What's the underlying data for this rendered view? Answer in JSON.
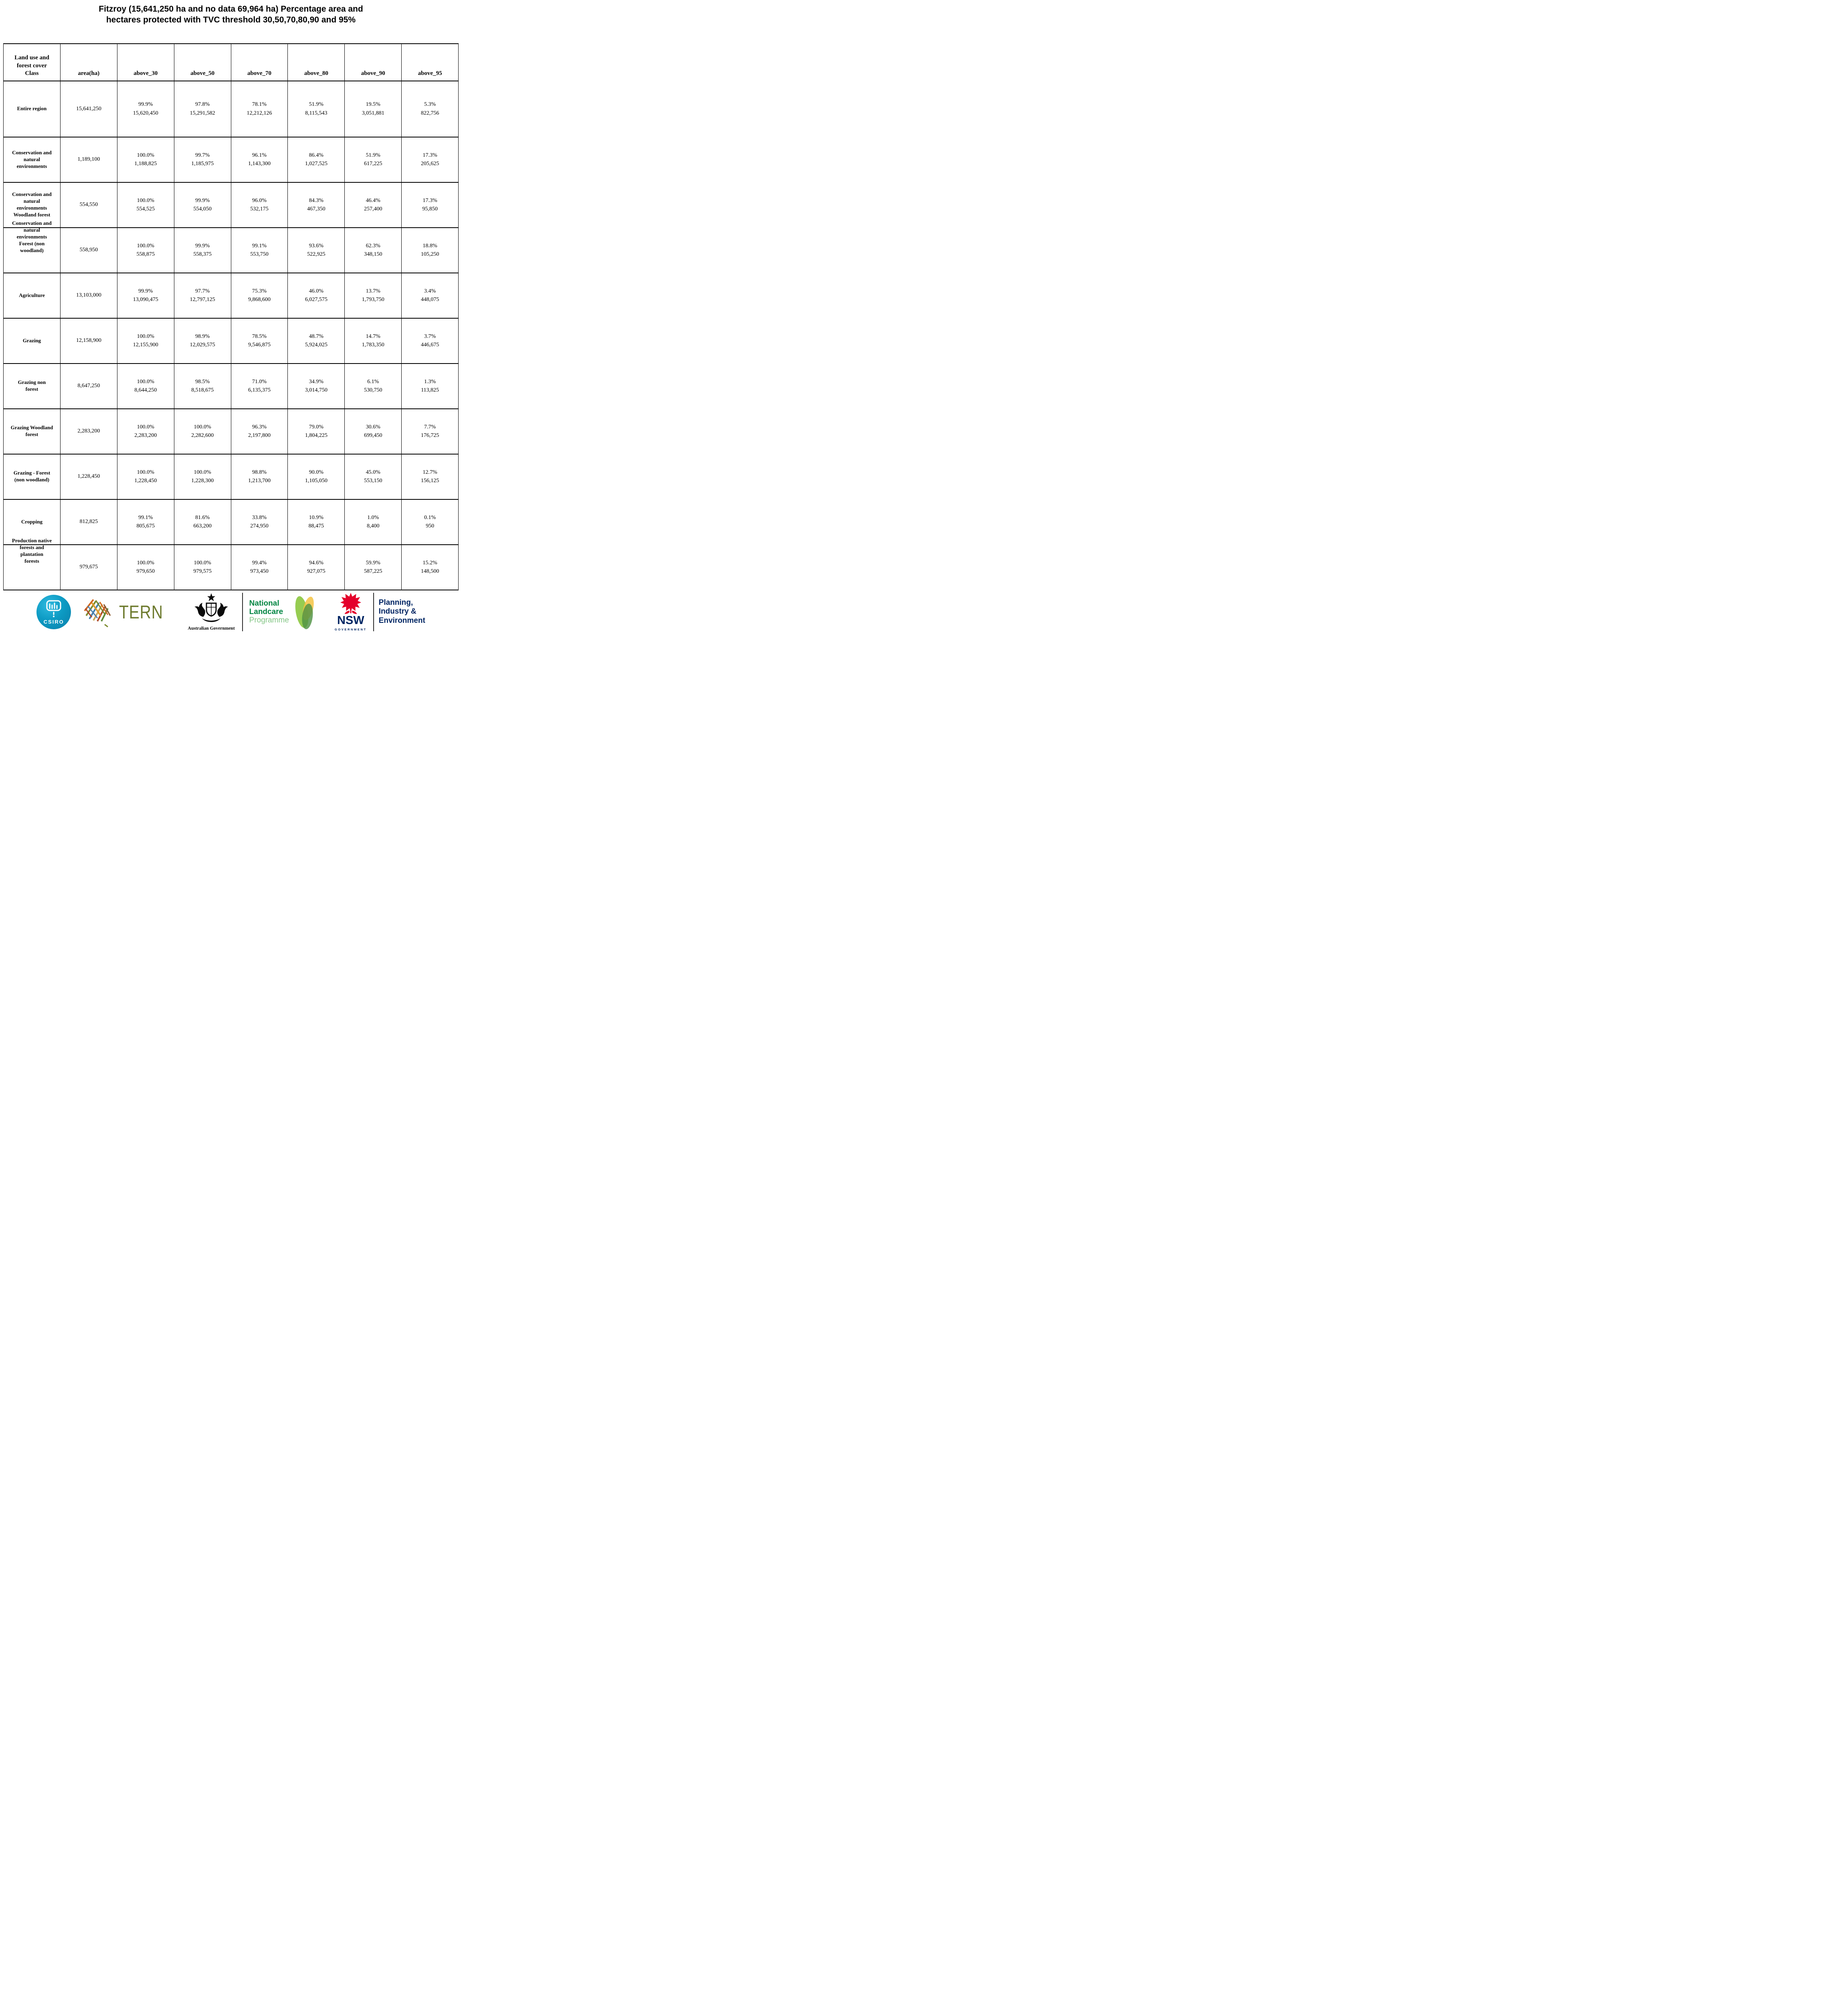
{
  "title": "Fitzroy (15,641,250 ha and no data 69,964 ha) Percentage area and\nhectares protected with TVC threshold 30,50,70,80,90 and 95%",
  "table": {
    "columns": [
      "Land use and\nforest cover\nClass",
      "area(ha)",
      "above_30",
      "above_50",
      "above_70",
      "above_80",
      "above_90",
      "above_95"
    ],
    "rows": [
      {
        "label": "Entire region",
        "area": "15,641,250",
        "cells": [
          {
            "pct": "99.9%",
            "ha": "15,620,450"
          },
          {
            "pct": "97.8%",
            "ha": "15,291,582"
          },
          {
            "pct": "78.1%",
            "ha": "12,212,126"
          },
          {
            "pct": "51.9%",
            "ha": "8,115,543"
          },
          {
            "pct": "19.5%",
            "ha": "3,051,881"
          },
          {
            "pct": "5.3%",
            "ha": "822,756"
          }
        ]
      },
      {
        "label": "Conservation and\nnatural\nenvironments",
        "area": "1,189,100",
        "cells": [
          {
            "pct": "100.0%",
            "ha": "1,188,825"
          },
          {
            "pct": "99.7%",
            "ha": "1,185,975"
          },
          {
            "pct": "96.1%",
            "ha": "1,143,300"
          },
          {
            "pct": "86.4%",
            "ha": "1,027,525"
          },
          {
            "pct": "51.9%",
            "ha": "617,225"
          },
          {
            "pct": "17.3%",
            "ha": "205,625"
          }
        ]
      },
      {
        "label": "Conservation and\nnatural\nenvironments\nWoodland forest",
        "area": "554,550",
        "cells": [
          {
            "pct": "100.0%",
            "ha": "554,525"
          },
          {
            "pct": "99.9%",
            "ha": "554,050"
          },
          {
            "pct": "96.0%",
            "ha": "532,175"
          },
          {
            "pct": "84.3%",
            "ha": "467,350"
          },
          {
            "pct": "46.4%",
            "ha": "257,400"
          },
          {
            "pct": "17.3%",
            "ha": "95,850"
          }
        ]
      },
      {
        "label": "Conservation and\nnatural\nenvironments\nForest (non\nwoodland)",
        "area": "558,950",
        "cells": [
          {
            "pct": "100.0%",
            "ha": "558,875"
          },
          {
            "pct": "99.9%",
            "ha": "558,375"
          },
          {
            "pct": "99.1%",
            "ha": "553,750"
          },
          {
            "pct": "93.6%",
            "ha": "522,925"
          },
          {
            "pct": "62.3%",
            "ha": "348,150"
          },
          {
            "pct": "18.8%",
            "ha": "105,250"
          }
        ]
      },
      {
        "label": "Agriculture",
        "area": "13,103,000",
        "cells": [
          {
            "pct": "99.9%",
            "ha": "13,090,475"
          },
          {
            "pct": "97.7%",
            "ha": "12,797,125"
          },
          {
            "pct": "75.3%",
            "ha": "9,868,600"
          },
          {
            "pct": "46.0%",
            "ha": "6,027,575"
          },
          {
            "pct": "13.7%",
            "ha": "1,793,750"
          },
          {
            "pct": "3.4%",
            "ha": "448,075"
          }
        ]
      },
      {
        "label": "Grazing",
        "area": "12,158,900",
        "cells": [
          {
            "pct": "100.0%",
            "ha": "12,155,900"
          },
          {
            "pct": "98.9%",
            "ha": "12,029,575"
          },
          {
            "pct": "78.5%",
            "ha": "9,546,875"
          },
          {
            "pct": "48.7%",
            "ha": "5,924,025"
          },
          {
            "pct": "14.7%",
            "ha": "1,783,350"
          },
          {
            "pct": "3.7%",
            "ha": "446,675"
          }
        ]
      },
      {
        "label": "Grazing non\nforest",
        "area": "8,647,250",
        "cells": [
          {
            "pct": "100.0%",
            "ha": "8,644,250"
          },
          {
            "pct": "98.5%",
            "ha": "8,518,675"
          },
          {
            "pct": "71.0%",
            "ha": "6,135,375"
          },
          {
            "pct": "34.9%",
            "ha": "3,014,750"
          },
          {
            "pct": "6.1%",
            "ha": "530,750"
          },
          {
            "pct": "1.3%",
            "ha": "113,825"
          }
        ]
      },
      {
        "label": "Grazing Woodland\nforest",
        "area": "2,283,200",
        "cells": [
          {
            "pct": "100.0%",
            "ha": "2,283,200"
          },
          {
            "pct": "100.0%",
            "ha": "2,282,600"
          },
          {
            "pct": "96.3%",
            "ha": "2,197,800"
          },
          {
            "pct": "79.0%",
            "ha": "1,804,225"
          },
          {
            "pct": "30.6%",
            "ha": "699,450"
          },
          {
            "pct": "7.7%",
            "ha": "176,725"
          }
        ]
      },
      {
        "label": "Grazing - Forest\n(non woodland)",
        "area": "1,228,450",
        "cells": [
          {
            "pct": "100.0%",
            "ha": "1,228,450"
          },
          {
            "pct": "100.0%",
            "ha": "1,228,300"
          },
          {
            "pct": "98.8%",
            "ha": "1,213,700"
          },
          {
            "pct": "90.0%",
            "ha": "1,105,050"
          },
          {
            "pct": "45.0%",
            "ha": "553,150"
          },
          {
            "pct": "12.7%",
            "ha": "156,125"
          }
        ]
      },
      {
        "label": "Cropping",
        "area": "812,825",
        "cells": [
          {
            "pct": "99.1%",
            "ha": "805,675"
          },
          {
            "pct": "81.6%",
            "ha": "663,200"
          },
          {
            "pct": "33.8%",
            "ha": "274,950"
          },
          {
            "pct": "10.9%",
            "ha": "88,475"
          },
          {
            "pct": "1.0%",
            "ha": "8,400"
          },
          {
            "pct": "0.1%",
            "ha": "950"
          }
        ]
      },
      {
        "label": "Production native\nforests and\nplantation\nforests",
        "area": "979,675",
        "cells": [
          {
            "pct": "100.0%",
            "ha": "979,650"
          },
          {
            "pct": "100.0%",
            "ha": "979,575"
          },
          {
            "pct": "99.4%",
            "ha": "973,450"
          },
          {
            "pct": "94.6%",
            "ha": "927,075"
          },
          {
            "pct": "59.9%",
            "ha": "587,225"
          },
          {
            "pct": "15.2%",
            "ha": "148,500"
          }
        ]
      }
    ]
  },
  "footer": {
    "csiro_label": "CSIRO",
    "tern": "TERN",
    "australian_government": "Australian Government",
    "landcare_national": "National",
    "landcare_landcare": "Landcare",
    "landcare_programme": "Programme",
    "nsw": "NSW",
    "nsw_government": "GOVERNMENT",
    "planning": "Planning,\nIndustry &\nEnvironment"
  },
  "colors": {
    "csiro_teal": "#0d9bc4",
    "tern_olive": "#6e7b2f",
    "landcare_green": "#008542",
    "landcare_light_green": "#84c686",
    "nsw_red": "#e4002b",
    "navy": "#002664",
    "table_border": "#000000"
  }
}
